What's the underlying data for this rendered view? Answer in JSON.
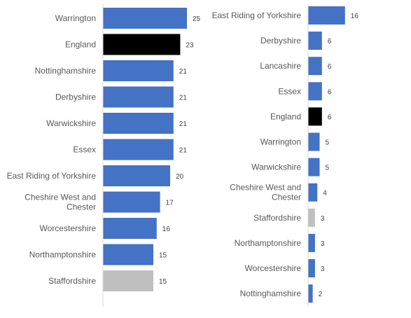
{
  "colors": {
    "default_bar": "#4472c4",
    "england_bar": "#000000",
    "staffordshire_bar": "#bfbfbf",
    "label_text": "#595959",
    "value_text": "#404040"
  },
  "chart_data": [
    {
      "type": "bar",
      "orientation": "horizontal",
      "title": "",
      "xlabel": "",
      "ylabel": "",
      "grid": false,
      "xlim": [
        0,
        25
      ],
      "categories": [
        "Warrington",
        "England",
        "Nottinghamshire",
        "Derbyshire",
        "Warwickshire",
        "Essex",
        "East Riding of Yorkshire",
        "Cheshire West and Chester",
        "Worcestershire",
        "Northamptonshire",
        "Staffordshire"
      ],
      "values": [
        25,
        23,
        21,
        21,
        21,
        21,
        20,
        17,
        16,
        15,
        15
      ],
      "bar_colors": [
        "#4472c4",
        "#000000",
        "#4472c4",
        "#4472c4",
        "#4472c4",
        "#4472c4",
        "#4472c4",
        "#4472c4",
        "#4472c4",
        "#4472c4",
        "#bfbfbf"
      ],
      "data_labels": [
        "25",
        "23",
        "21",
        "21",
        "21",
        "21",
        "20",
        "17",
        "16",
        "15",
        "15"
      ]
    },
    {
      "type": "bar",
      "orientation": "horizontal",
      "title": "",
      "xlabel": "",
      "ylabel": "",
      "grid": false,
      "xlim": [
        0,
        16
      ],
      "categories": [
        "East Riding of Yorkshire",
        "Derbyshire",
        "Lancashire",
        "Essex",
        "England",
        "Warrington",
        "Warwickshire",
        "Cheshire West and Chester",
        "Staffordshire",
        "Northamptonshire",
        "Worcestershire",
        "Nottinghamshire"
      ],
      "values": [
        16,
        6,
        6,
        6,
        6,
        5,
        5,
        4,
        3,
        3,
        3,
        2
      ],
      "bar_colors": [
        "#4472c4",
        "#4472c4",
        "#4472c4",
        "#4472c4",
        "#000000",
        "#4472c4",
        "#4472c4",
        "#4472c4",
        "#bfbfbf",
        "#4472c4",
        "#4472c4",
        "#4472c4"
      ],
      "data_labels": [
        "16",
        "6",
        "6",
        "6",
        "6",
        "5",
        "5",
        "4",
        "3",
        "3",
        "3",
        "2"
      ]
    }
  ]
}
